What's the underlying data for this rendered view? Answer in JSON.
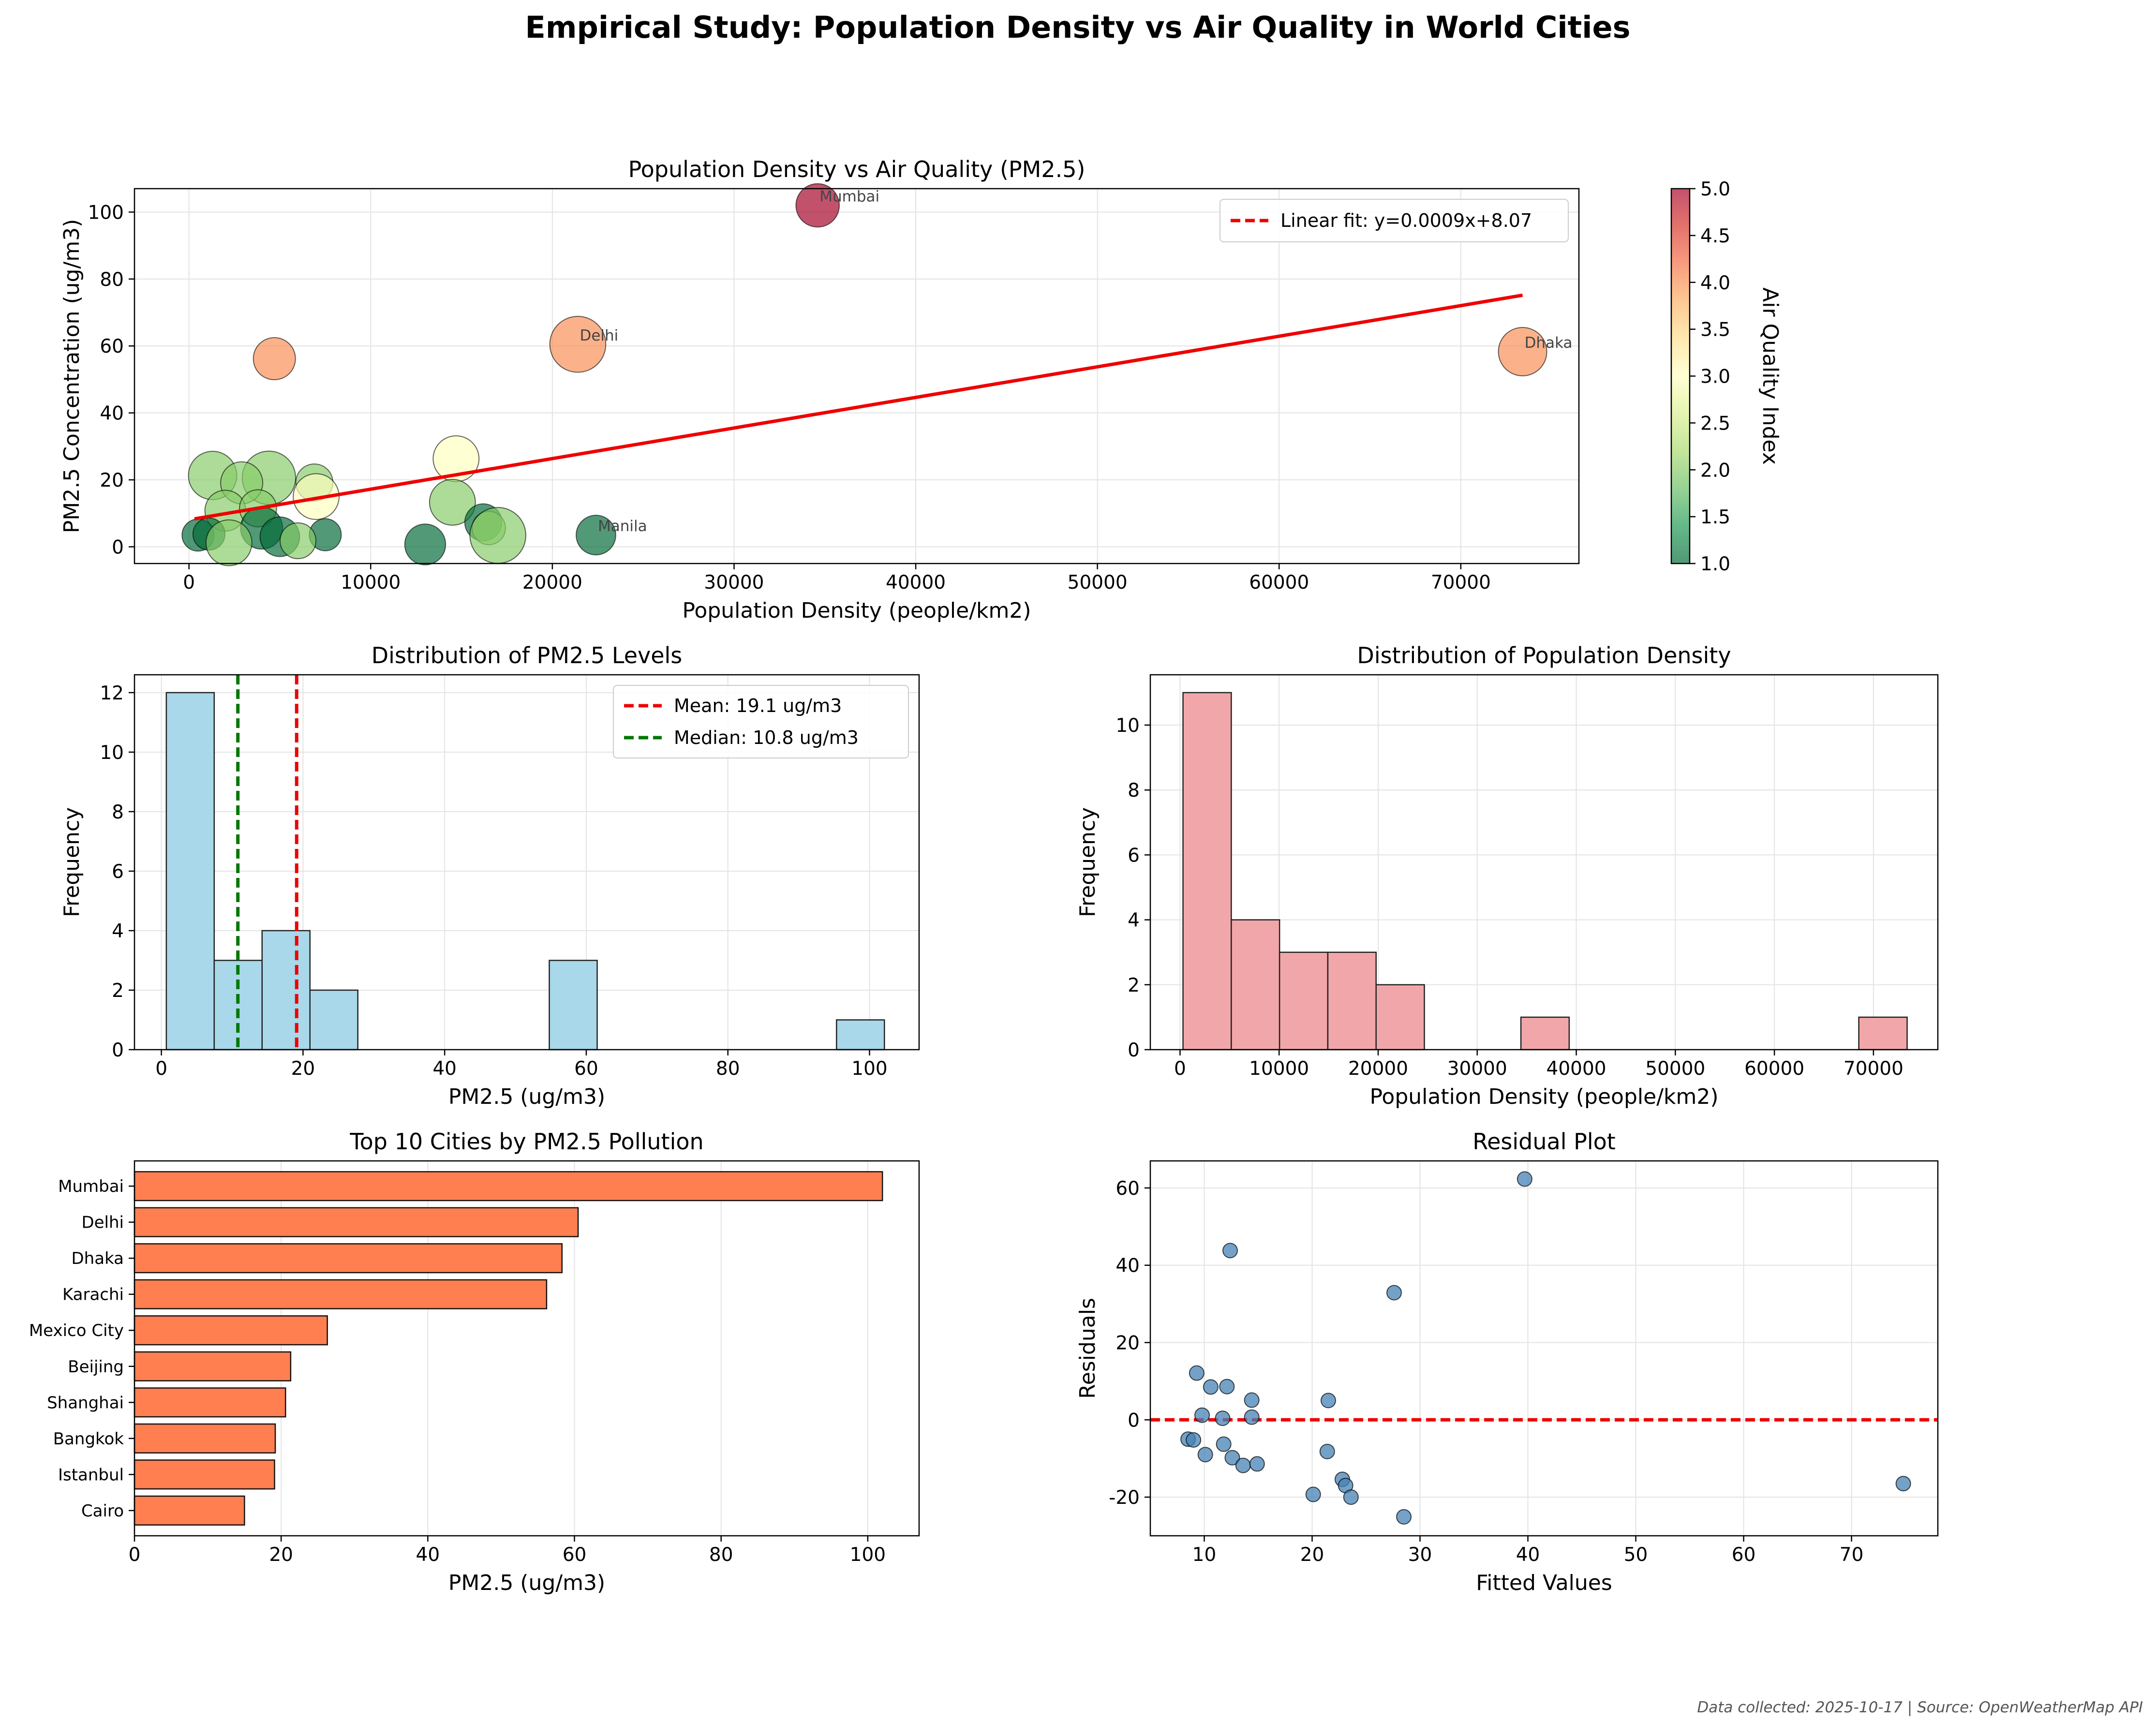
{
  "figure": {
    "suptitle": "Empirical Study: Population Density vs Air Quality in World Cities",
    "footer": "Data collected: 2025-10-17 | Source: OpenWeatherMap API"
  },
  "chart_data": [
    {
      "id": "scatter",
      "type": "scatter",
      "title": "Population Density vs Air Quality (PM2.5)",
      "xlabel": "Population Density (people/km2)",
      "ylabel": "PM2.5 Concentration (ug/m3)",
      "xlim": [
        -3000,
        76500
      ],
      "ylim": [
        -5,
        107
      ],
      "xticks": [
        0,
        10000,
        20000,
        30000,
        40000,
        50000,
        60000,
        70000
      ],
      "yticks": [
        0,
        20,
        40,
        60,
        80,
        100
      ],
      "grid": true,
      "legend": {
        "position": "upper right",
        "entries": [
          "Linear fit: y=0.0009x+8.07"
        ]
      },
      "fit": {
        "slope": 0.000914,
        "intercept": 8.07,
        "x_range": [
          300,
          73400
        ],
        "color": "#ee0000"
      },
      "colorbar": {
        "label": "Air Quality Index",
        "range": [
          1.0,
          5.0
        ],
        "ticks": [
          "1.0",
          "1.5",
          "2.0",
          "2.5",
          "3.0",
          "3.5",
          "4.0",
          "4.5",
          "5.0"
        ],
        "colormap": "RdYlGn_r"
      },
      "points": [
        {
          "x": 34600,
          "y": 102,
          "aqi": 5,
          "size": 0.8,
          "label": "Mumbai"
        },
        {
          "x": 21400,
          "y": 60.5,
          "aqi": 4,
          "size": 1.3,
          "label": "Delhi"
        },
        {
          "x": 73400,
          "y": 58.3,
          "aqi": 4,
          "size": 1.0,
          "label": "Dhaka"
        },
        {
          "x": 22400,
          "y": 3.5,
          "aqi": 1,
          "size": 0.65,
          "label": "Manila"
        },
        {
          "x": 4700,
          "y": 56.2,
          "aqi": 4,
          "size": 0.75
        },
        {
          "x": 14700,
          "y": 26.3,
          "aqi": 3,
          "size": 0.9
        },
        {
          "x": 1300,
          "y": 21.3,
          "aqi": 2,
          "size": 1.0
        },
        {
          "x": 4400,
          "y": 20.6,
          "aqi": 2,
          "size": 1.2
        },
        {
          "x": 2900,
          "y": 19.1,
          "aqi": 2,
          "size": 0.75
        },
        {
          "x": 6900,
          "y": 19.2,
          "aqi": 2,
          "size": 0.55
        },
        {
          "x": 7000,
          "y": 15.0,
          "aqi": 3,
          "size": 0.9
        },
        {
          "x": 14500,
          "y": 13.3,
          "aqi": 2,
          "size": 0.9
        },
        {
          "x": 2000,
          "y": 10.8,
          "aqi": 2,
          "size": 0.7
        },
        {
          "x": 3800,
          "y": 11.5,
          "aqi": 2,
          "size": 0.55
        },
        {
          "x": 16200,
          "y": 7.3,
          "aqi": 1,
          "size": 0.55
        },
        {
          "x": 4000,
          "y": 5.6,
          "aqi": 1,
          "size": 0.75
        },
        {
          "x": 16500,
          "y": 5.6,
          "aqi": 2,
          "size": 0.4
        },
        {
          "x": 5000,
          "y": 3.0,
          "aqi": 1,
          "size": 0.65
        },
        {
          "x": 17000,
          "y": 3.4,
          "aqi": 2,
          "size": 1.3
        },
        {
          "x": 500,
          "y": 3.5,
          "aqi": 1,
          "size": 0.35
        },
        {
          "x": 1100,
          "y": 3.8,
          "aqi": 1,
          "size": 0.35
        },
        {
          "x": 7500,
          "y": 3.6,
          "aqi": 1,
          "size": 0.35
        },
        {
          "x": 2200,
          "y": 1.2,
          "aqi": 2,
          "size": 0.9
        },
        {
          "x": 6000,
          "y": 1.8,
          "aqi": 2,
          "size": 0.5
        },
        {
          "x": 13000,
          "y": 0.7,
          "aqi": 1,
          "size": 0.7
        }
      ]
    },
    {
      "id": "hist_pm25",
      "type": "bar",
      "title": "Distribution of PM2.5 Levels",
      "xlabel": "PM2.5 (ug/m3)",
      "ylabel": "Frequency",
      "xlim": [
        -3.8,
        107
      ],
      "ylim": [
        0,
        12.6
      ],
      "xticks": [
        0,
        20,
        40,
        60,
        80,
        100
      ],
      "yticks": [
        0,
        2,
        4,
        6,
        8,
        10,
        12
      ],
      "grid": true,
      "bin_edges": [
        0.7,
        7.46,
        14.22,
        20.98,
        27.74,
        34.5,
        41.26,
        48.02,
        54.78,
        61.54,
        68.3,
        75.06,
        81.82,
        88.58,
        95.34,
        102.1
      ],
      "values": [
        12,
        3,
        4,
        2,
        0,
        0,
        0,
        0,
        3,
        0,
        0,
        0,
        0,
        0,
        1
      ],
      "bar_color": "#a8d8ea",
      "vlines": [
        {
          "x": 19.1,
          "color": "#ee0000",
          "label": "Mean: 19.1 ug/m3"
        },
        {
          "x": 10.8,
          "color": "#007700",
          "label": "Median: 10.8 ug/m3"
        }
      ],
      "legend": {
        "position": "upper right"
      }
    },
    {
      "id": "hist_density",
      "type": "bar",
      "title": "Distribution of Population Density",
      "xlabel": "Population Density (people/km2)",
      "ylabel": "Frequency",
      "xlim": [
        -3000,
        76500
      ],
      "ylim": [
        0,
        11.55
      ],
      "xticks": [
        0,
        10000,
        20000,
        30000,
        40000,
        50000,
        60000,
        70000
      ],
      "yticks": [
        0,
        2,
        4,
        6,
        8,
        10
      ],
      "grid": true,
      "bin_edges": [
        300,
        5173,
        10046,
        14919,
        19792,
        24665,
        29538,
        34411,
        39284,
        44157,
        49030,
        53903,
        58776,
        63649,
        68522,
        73400
      ],
      "values": [
        11,
        4,
        3,
        3,
        2,
        0,
        0,
        1,
        0,
        0,
        0,
        0,
        0,
        0,
        1
      ],
      "bar_color": "#f1a7a9"
    },
    {
      "id": "top10",
      "type": "bar",
      "orientation": "horizontal",
      "title": "Top 10 Cities by PM2.5 Pollution",
      "xlabel": "PM2.5 (ug/m3)",
      "xlim": [
        0,
        107
      ],
      "xticks": [
        0,
        20,
        40,
        60,
        80,
        100
      ],
      "grid": true,
      "categories": [
        "Mumbai",
        "Delhi",
        "Dhaka",
        "Karachi",
        "Mexico City",
        "Beijing",
        "Shanghai",
        "Bangkok",
        "Istanbul",
        "Cairo"
      ],
      "values": [
        102.0,
        60.5,
        58.3,
        56.2,
        26.3,
        21.3,
        20.6,
        19.2,
        19.1,
        15.0
      ],
      "bar_color": "#ff7f50"
    },
    {
      "id": "residuals",
      "type": "scatter",
      "title": "Residual Plot",
      "xlabel": "Fitted Values",
      "ylabel": "Residuals",
      "xlim": [
        5,
        78
      ],
      "ylim": [
        -30,
        67
      ],
      "xticks": [
        10,
        20,
        30,
        40,
        50,
        60,
        70
      ],
      "yticks": [
        -20,
        0,
        20,
        40,
        60
      ],
      "grid": true,
      "hline": {
        "y": 0,
        "color": "#ee0000"
      },
      "point_color": "#4682b4",
      "points": [
        {
          "x": 39.7,
          "y": 62.3
        },
        {
          "x": 12.4,
          "y": 43.8
        },
        {
          "x": 27.6,
          "y": 32.9
        },
        {
          "x": 9.3,
          "y": 12.1
        },
        {
          "x": 10.6,
          "y": 8.5
        },
        {
          "x": 12.1,
          "y": 8.6
        },
        {
          "x": 9.8,
          "y": 1.2
        },
        {
          "x": 11.7,
          "y": 0.4
        },
        {
          "x": 14.4,
          "y": 5.1
        },
        {
          "x": 14.4,
          "y": 0.7
        },
        {
          "x": 21.5,
          "y": 5.0
        },
        {
          "x": 8.5,
          "y": -5.0
        },
        {
          "x": 9.0,
          "y": -5.2
        },
        {
          "x": 11.8,
          "y": -6.3
        },
        {
          "x": 10.1,
          "y": -9.0
        },
        {
          "x": 12.6,
          "y": -9.8
        },
        {
          "x": 13.6,
          "y": -11.8
        },
        {
          "x": 14.9,
          "y": -11.4
        },
        {
          "x": 21.4,
          "y": -8.2
        },
        {
          "x": 22.8,
          "y": -15.4
        },
        {
          "x": 23.1,
          "y": -17.0
        },
        {
          "x": 20.1,
          "y": -19.3
        },
        {
          "x": 23.6,
          "y": -20.0
        },
        {
          "x": 28.5,
          "y": -25.1
        },
        {
          "x": 74.8,
          "y": -16.5
        }
      ]
    }
  ]
}
